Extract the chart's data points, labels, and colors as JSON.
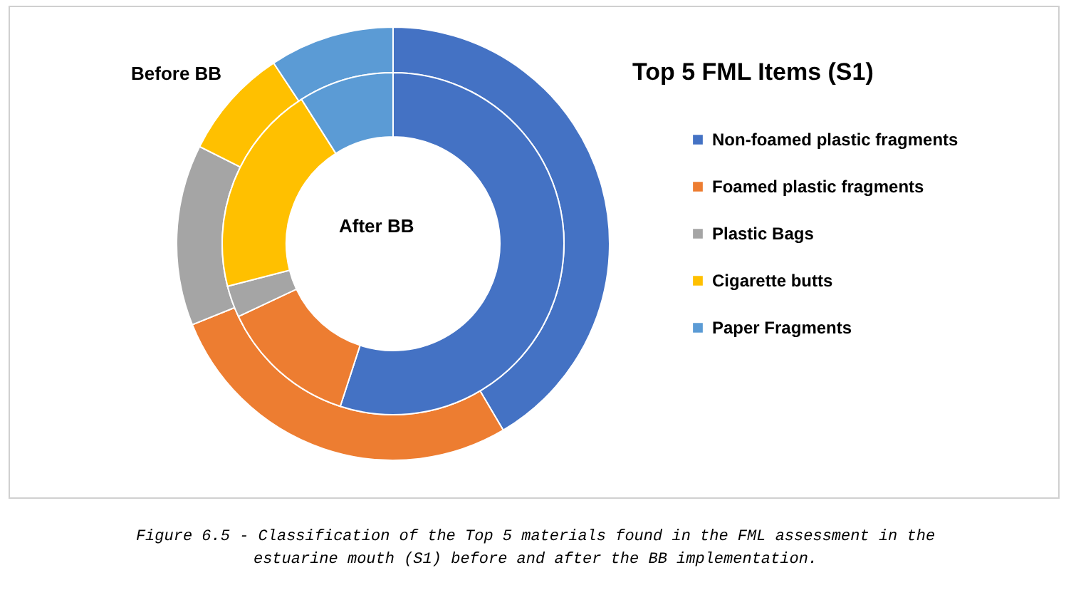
{
  "chart_data": {
    "type": "donut",
    "title": "Top 5 FML Items (S1)",
    "categories": [
      "Non-foamed plastic fragments",
      "Foamed plastic fragments",
      "Plastic Bags",
      "Cigarette butts",
      "Paper Fragments"
    ],
    "colors": [
      "#4472c4",
      "#ed7d31",
      "#a5a5a5",
      "#ffc000",
      "#5b9bd5"
    ],
    "series": [
      {
        "name": "Before BB",
        "values": [
          41.5,
          27.4,
          13.5,
          8.3,
          9.3
        ]
      },
      {
        "name": "After BB",
        "values": [
          55,
          13,
          3,
          20,
          9
        ]
      }
    ],
    "legend": "right",
    "annotations": [
      "Figure 6.5 - Classification of the Top 5 materials found in the FML assessment in the\nestuarine mouth (S1) before and after the BB implementation."
    ]
  }
}
